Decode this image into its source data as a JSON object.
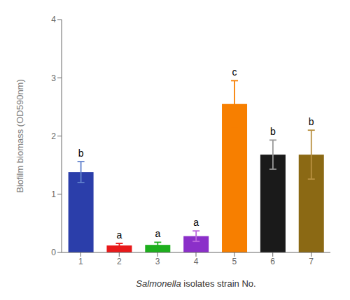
{
  "chart_data": {
    "type": "bar",
    "categories": [
      "1",
      "2",
      "3",
      "4",
      "5",
      "6",
      "7"
    ],
    "values": [
      1.38,
      0.12,
      0.13,
      0.28,
      2.55,
      1.68,
      1.68
    ],
    "errors": [
      0.18,
      0.035,
      0.045,
      0.09,
      0.4,
      0.25,
      0.42
    ],
    "colors": [
      "#2B3EAA",
      "#E8191A",
      "#1DAF1D",
      "#8B2FC9",
      "#F77F00",
      "#1A1A1A",
      "#8B6914"
    ],
    "error_colors": [
      "#6080CC",
      "#E8191A",
      "#1DAF1D",
      "#BB66DD",
      "#F77F00",
      "#999999",
      "#B89040"
    ],
    "annotations": [
      "b",
      "a",
      "a",
      "a",
      "c",
      "b",
      "b"
    ],
    "ylabel": "Biofilm biomass  (OD590nm)",
    "xlabel": "Salmonella isolates strain No.",
    "ylim": [
      0,
      4
    ],
    "yticks": [
      0,
      1,
      2,
      3,
      4
    ],
    "grid": false
  }
}
